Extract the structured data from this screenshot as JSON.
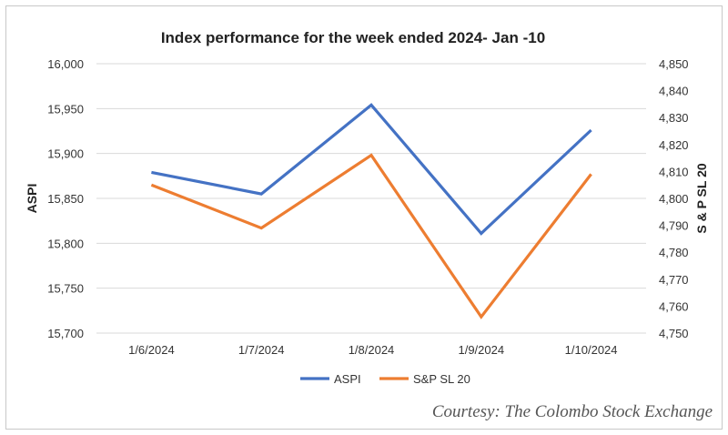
{
  "chart_data": {
    "type": "line",
    "title": "Index performance for the week ended 2024- Jan -10",
    "categories": [
      "1/6/2024",
      "1/7/2024",
      "1/8/2024",
      "1/9/2024",
      "1/10/2024"
    ],
    "ylabel": "ASPI",
    "ylabel_right": "S & P SL 20",
    "ylim": [
      15700,
      16000
    ],
    "y2lim": [
      4750,
      4850
    ],
    "yticks": [
      "15,700",
      "15,750",
      "15,800",
      "15,850",
      "15,900",
      "15,950",
      "16,000"
    ],
    "y2ticks": [
      "4,750",
      "4,760",
      "4,770",
      "4,780",
      "4,790",
      "4,800",
      "4,810",
      "4,820",
      "4,830",
      "4,840",
      "4,850"
    ],
    "grid": true,
    "legend_position": "bottom",
    "series": [
      {
        "name": "ASPI",
        "axis": "left",
        "color": "#4472C4",
        "values": [
          15879,
          15855,
          15954,
          15811,
          15926
        ]
      },
      {
        "name": "S&P SL 20",
        "axis": "right",
        "color": "#ED7D31",
        "values": [
          4805,
          4789,
          4816,
          4756,
          4809
        ]
      }
    ]
  },
  "credit": "Courtesy: The Colombo Stock Exchange"
}
